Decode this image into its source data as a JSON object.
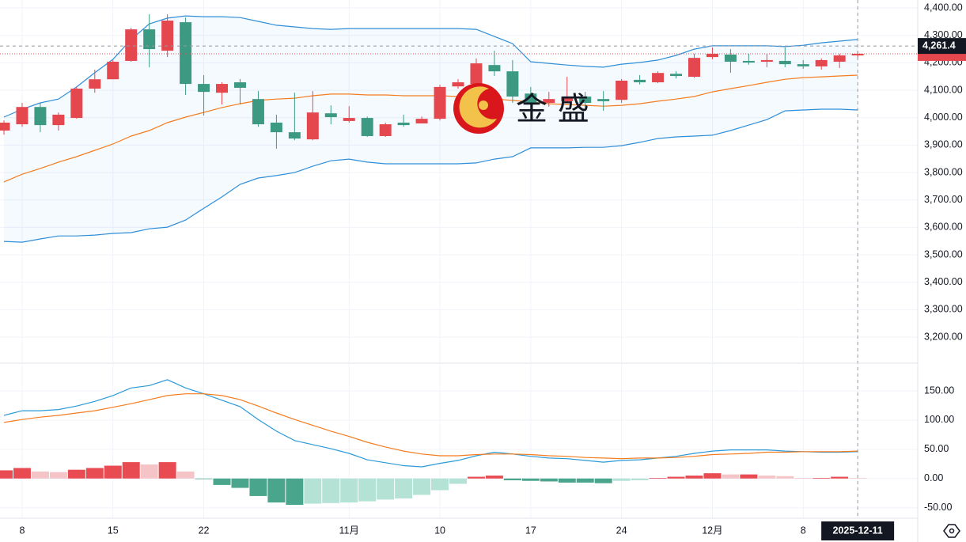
{
  "chart_data": [
    {
      "type": "candlestick",
      "categories": [
        null,
        "8",
        null,
        null,
        null,
        null,
        "15",
        null,
        null,
        null,
        null,
        "22",
        null,
        null,
        null,
        null,
        null,
        null,
        null,
        "11月",
        null,
        null,
        null,
        null,
        "10",
        null,
        null,
        null,
        null,
        "17",
        null,
        null,
        null,
        null,
        "24",
        null,
        null,
        null,
        null,
        "12月",
        null,
        null,
        null,
        null,
        "8",
        null,
        null,
        "2025-12-11"
      ],
      "open": [
        3953,
        3976,
        4039,
        3973,
        3999,
        4106,
        4140,
        4207,
        4322,
        4244,
        4348,
        4123,
        4091,
        4129,
        4068,
        3982,
        3947,
        3921,
        4016,
        3988,
        3999,
        3933,
        3982,
        3979,
        3996,
        4114,
        4123,
        4192,
        4169,
        4088,
        4054,
        4060,
        4077,
        4068,
        4065,
        4138,
        4129,
        4160,
        4149,
        4221,
        4230,
        4207,
        4204,
        4207,
        4195,
        4187,
        4204,
        4227
      ],
      "high": [
        3990,
        4054,
        4054,
        4019,
        4112,
        4175,
        4210,
        4328,
        4377,
        4377,
        4365,
        4155,
        4129,
        4141,
        4097,
        4011,
        4091,
        4097,
        4045,
        4042,
        4004,
        3982,
        4011,
        4004,
        4120,
        4141,
        4216,
        4244,
        4210,
        4112,
        4094,
        4149,
        4094,
        4097,
        4141,
        4155,
        4169,
        4169,
        4233,
        4256,
        4250,
        4233,
        4233,
        4256,
        4210,
        4216,
        4233,
        4244
      ],
      "low": [
        3938,
        3967,
        3947,
        3953,
        3996,
        4091,
        4140,
        4204,
        4184,
        4221,
        4083,
        4008,
        4048,
        4048,
        3967,
        3887,
        3918,
        3918,
        3976,
        3982,
        3930,
        3930,
        3967,
        3982,
        3990,
        4106,
        4117,
        4152,
        4054,
        4040,
        4040,
        4054,
        4033,
        4025,
        4054,
        4121,
        4126,
        4143,
        4146,
        4213,
        4164,
        4193,
        4184,
        4184,
        4178,
        4175,
        4181,
        4213
      ],
      "close": [
        3982,
        4039,
        3973,
        4011,
        4106,
        4140,
        4204,
        4322,
        4250,
        4354,
        4123,
        4094,
        4123,
        4109,
        3976,
        3947,
        3924,
        4019,
        4002,
        3999,
        3933,
        3976,
        3973,
        3996,
        4112,
        4129,
        4198,
        4169,
        4077,
        4054,
        4068,
        4077,
        4054,
        4060,
        4135,
        4129,
        4163,
        4152,
        4218,
        4233,
        4204,
        4201,
        4210,
        4195,
        4187,
        4210,
        4227,
        4233
      ],
      "up_color": "#e5474f",
      "down_color": "#3d9a82",
      "series": [
        {
          "color": "#2f8ed8",
          "values": [
            4002,
            4031,
            4054,
            4068,
            4112,
            4164,
            4213,
            4285,
            4342,
            4363,
            4371,
            4368,
            4368,
            4365,
            4351,
            4337,
            4331,
            4325,
            4322,
            4325,
            4325,
            4325,
            4325,
            4325,
            4325,
            4325,
            4322,
            4296,
            4270,
            4204,
            4198,
            4192,
            4187,
            4184,
            4195,
            4201,
            4210,
            4227,
            4250,
            4262,
            4262,
            4262,
            4262,
            4259,
            4264,
            4273,
            4279,
            4285
          ]
        },
        {
          "color": "#f57c1f",
          "values": [
            3766,
            3794,
            3815,
            3838,
            3858,
            3881,
            3904,
            3933,
            3953,
            3982,
            4002,
            4019,
            4037,
            4051,
            4063,
            4068,
            4071,
            4080,
            4086,
            4086,
            4083,
            4083,
            4080,
            4080,
            4080,
            4077,
            4074,
            4068,
            4063,
            4057,
            4051,
            4048,
            4045,
            4042,
            4045,
            4051,
            4060,
            4068,
            4077,
            4094,
            4106,
            4117,
            4129,
            4140,
            4146,
            4149,
            4152,
            4155
          ]
        },
        {
          "color": "#2f8ed8",
          "values": [
            3549,
            3546,
            3558,
            3569,
            3569,
            3572,
            3578,
            3581,
            3595,
            3601,
            3627,
            3670,
            3711,
            3757,
            3780,
            3789,
            3800,
            3823,
            3843,
            3849,
            3838,
            3832,
            3832,
            3832,
            3832,
            3832,
            3835,
            3849,
            3858,
            3890,
            3890,
            3890,
            3892,
            3892,
            3898,
            3910,
            3924,
            3930,
            3933,
            3936,
            3953,
            3973,
            3993,
            4025,
            4028,
            4031,
            4031,
            4028
          ]
        }
      ],
      "band_fill": "#2196f3",
      "ylim": [
        3108,
        4429
      ],
      "yticks": [
        {
          "value": 4400,
          "label": "4,400.00"
        },
        {
          "value": 4300,
          "label": "4,300.00"
        },
        {
          "value": 4200,
          "label": "4,200.00"
        },
        {
          "value": 4100,
          "label": "4,100.00"
        },
        {
          "value": 4000,
          "label": "4,000.00"
        },
        {
          "value": 3900,
          "label": "3,900.00"
        },
        {
          "value": 3800,
          "label": "3,800.00"
        },
        {
          "value": 3700,
          "label": "3,700.00"
        },
        {
          "value": 3600,
          "label": "3,600.00"
        },
        {
          "value": 3500,
          "label": "3,500.00"
        },
        {
          "value": 3400,
          "label": "3,400.00"
        },
        {
          "value": 3300,
          "label": "3,300.00"
        },
        {
          "value": 3200,
          "label": "3,200.00"
        }
      ],
      "crosshair": {
        "x": "2025-12-11",
        "y": {
          "value": 4261.4,
          "label": "4,261.4"
        }
      },
      "watermark": "金 盛",
      "grid": true
    },
    {
      "type": "macd",
      "series": [
        {
          "color": "#2a9ad8",
          "values": [
            108,
            116,
            116,
            118,
            124,
            132,
            142,
            155,
            159,
            169,
            155,
            145,
            134,
            123,
            101,
            81,
            65,
            58,
            51,
            43,
            32,
            27,
            22,
            20,
            26,
            31,
            39,
            45,
            42,
            38,
            35,
            34,
            31,
            28,
            31,
            32,
            35,
            38,
            43,
            47,
            49,
            49,
            49,
            47,
            46,
            45,
            45,
            46
          ]
        },
        {
          "color": "#f57c1f",
          "values": [
            96,
            101,
            105,
            108,
            112,
            116,
            122,
            128,
            135,
            142,
            145,
            145,
            142,
            135,
            124,
            112,
            101,
            91,
            81,
            72,
            62,
            54,
            47,
            42,
            39,
            39,
            41,
            42,
            42,
            41,
            39,
            38,
            36,
            35,
            34,
            35,
            35,
            36,
            38,
            41,
            42,
            43,
            45,
            45,
            46,
            46,
            46,
            47
          ]
        }
      ],
      "histogram": [
        14,
        18,
        12,
        11,
        15,
        18,
        22,
        28,
        24,
        28,
        12,
        -1,
        -11,
        -16,
        -30,
        -41,
        -45,
        -43,
        -42,
        -41,
        -39,
        -36,
        -34,
        -28,
        -20,
        -9,
        3,
        5,
        -3,
        -4,
        -5,
        -7,
        -7,
        -8,
        -4,
        -3,
        1,
        3,
        5,
        9,
        7,
        7,
        5,
        4,
        1,
        1,
        3,
        1
      ],
      "histogram_colors": {
        "up_rising": "#e84c52",
        "up_falling": "#f5c4c6",
        "down_falling": "#4aa58d",
        "down_rising": "#b4e2d5"
      },
      "ylim": [
        -68,
        196
      ],
      "yticks": [
        {
          "value": 150,
          "label": "150.00"
        },
        {
          "value": 100,
          "label": "100.00"
        },
        {
          "value": 50,
          "label": "50.00"
        },
        {
          "value": 0,
          "label": "0.00"
        },
        {
          "value": -50,
          "label": "-50.00"
        }
      ],
      "grid": true
    }
  ]
}
